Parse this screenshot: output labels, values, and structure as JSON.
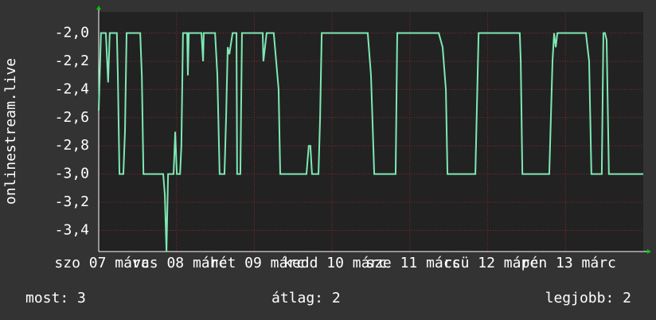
{
  "chart_data": {
    "type": "line",
    "y_label": "onlinestream.live",
    "xlim": [
      0,
      168
    ],
    "xticks": [
      {
        "value": 0,
        "label": "szo 07 márc"
      },
      {
        "value": 24,
        "label": "vas 08 márc"
      },
      {
        "value": 48,
        "label": "hét 09 márc"
      },
      {
        "value": 72,
        "label": "kedd 10 márc"
      },
      {
        "value": 96,
        "label": "sze 11 márc"
      },
      {
        "value": 120,
        "label": "csü 12 márc"
      },
      {
        "value": 144,
        "label": "pén 13 márc"
      }
    ],
    "ylim": [
      -3.55,
      -1.85
    ],
    "yticks": [
      {
        "value": -2.0,
        "label": "-2,0"
      },
      {
        "value": -2.2,
        "label": "-2,2"
      },
      {
        "value": -2.4,
        "label": "-2,4"
      },
      {
        "value": -2.6,
        "label": "-2,6"
      },
      {
        "value": -2.8,
        "label": "-2,8"
      },
      {
        "value": -3.0,
        "label": "-3,0"
      },
      {
        "value": -3.2,
        "label": "-3,2"
      },
      {
        "value": -3.4,
        "label": "-3,4"
      }
    ],
    "grid": true,
    "series": [
      {
        "color": "#7ee8b4",
        "x": [
          0,
          0.7,
          2.2,
          2.9,
          3.4,
          5.6,
          5.9,
          6.4,
          7.6,
          8.1,
          8.6,
          12.8,
          13.3,
          13.8,
          19.9,
          20.4,
          20.9,
          21.4,
          23.1,
          23.6,
          24.1,
          25.1,
          25.5,
          26.0,
          27.3,
          27.5,
          27.8,
          31.7,
          32.2,
          32.4,
          35.9,
          36.6,
          37.3,
          38.8,
          39.3,
          39.8,
          40.3,
          41.3,
          42.5,
          42.7,
          43.7,
          44.2,
          50.6,
          50.8,
          51.8,
          54.0,
          55.5,
          56.0,
          64.1,
          64.8,
          65.3,
          65.8,
          67.8,
          68.3,
          68.8,
          83.0,
          84.0,
          85.0,
          91.6,
          92.1,
          104.9,
          106.1,
          107.1,
          107.6,
          116.2,
          116.6,
          117.2,
          129.9,
          130.2,
          130.7,
          139.0,
          140.0,
          140.5,
          141.0,
          141.5,
          150.3,
          151.3,
          152.0,
          155.2,
          155.7,
          156.2,
          156.7,
          157.4,
          168.0
        ],
        "values": [
          -2.55,
          -2.0,
          -2.0,
          -2.35,
          -2.0,
          -2.0,
          -2.3,
          -3.0,
          -3.0,
          -2.7,
          -2.0,
          -2.0,
          -2.3,
          -3.0,
          -3.0,
          -3.15,
          -3.55,
          -3.0,
          -3.0,
          -2.7,
          -3.0,
          -3.0,
          -2.8,
          -2.0,
          -2.0,
          -2.3,
          -2.0,
          -2.0,
          -2.2,
          -2.0,
          -2.0,
          -2.3,
          -3.0,
          -3.0,
          -2.6,
          -2.1,
          -2.15,
          -2.0,
          -2.0,
          -3.0,
          -3.0,
          -2.0,
          -2.0,
          -2.2,
          -2.0,
          -2.0,
          -2.4,
          -3.0,
          -3.0,
          -2.8,
          -2.8,
          -3.0,
          -3.0,
          -2.6,
          -2.0,
          -2.0,
          -2.3,
          -3.0,
          -3.0,
          -2.0,
          -2.0,
          -2.1,
          -2.4,
          -3.0,
          -3.0,
          -2.6,
          -2.0,
          -2.0,
          -2.2,
          -3.0,
          -3.0,
          -2.2,
          -2.0,
          -2.1,
          -2.0,
          -2.0,
          -2.2,
          -3.0,
          -3.0,
          -2.0,
          -2.0,
          -2.05,
          -3.0,
          -3.0
        ]
      }
    ],
    "footer": {
      "current": "most: 3",
      "average": "átlag: 2",
      "best": "legjobb: 2"
    }
  }
}
